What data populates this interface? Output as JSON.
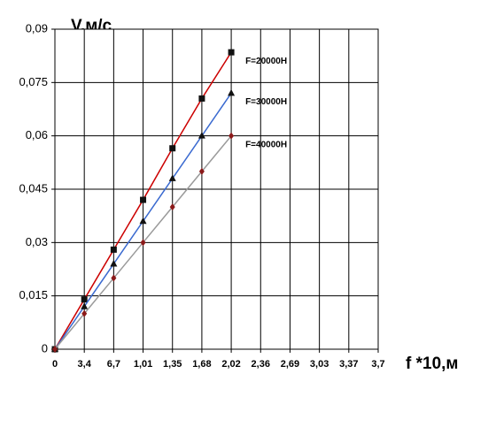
{
  "chart_data": {
    "type": "line",
    "ylabel": "V,м/с",
    "xlabel": "f *10,м",
    "categories": [
      "0",
      "3,4",
      "6,7",
      "1,01",
      "1,35",
      "1,68",
      "2,02",
      "2,36",
      "2,69",
      "3,03",
      "3,37",
      "3,7"
    ],
    "ylim": [
      0,
      0.09
    ],
    "yticks": [
      0,
      {
        "value": 0.015,
        "label": "0,015"
      },
      {
        "value": 0.03,
        "label": "0,03"
      },
      {
        "value": 0.045,
        "label": "0,045"
      },
      {
        "value": 0.06,
        "label": "0,06"
      },
      {
        "value": 0.075,
        "label": "0,075"
      },
      {
        "value": 0.09,
        "label": "0,09"
      }
    ],
    "grid": true,
    "series": [
      {
        "name": "F=20000H",
        "color": "#cc0000",
        "marker": "square",
        "marker_color": "#111111",
        "values": [
          0,
          0.014,
          0.028,
          0.042,
          0.0565,
          0.0705,
          0.0835,
          null,
          null,
          null,
          null,
          null
        ]
      },
      {
        "name": "F=30000H",
        "color": "#3a6ad0",
        "marker": "triangle",
        "marker_color": "#111111",
        "values": [
          0,
          0.012,
          0.024,
          0.036,
          0.048,
          0.06,
          0.072,
          null,
          null,
          null,
          null,
          null
        ]
      },
      {
        "name": "F=40000H",
        "color": "#9a9a9a",
        "marker": "diamond",
        "marker_color": "#8b1a1a",
        "values": [
          0,
          0.01,
          0.02,
          0.03,
          0.04,
          0.05,
          0.06,
          null,
          null,
          null,
          null,
          null
        ]
      }
    ]
  }
}
